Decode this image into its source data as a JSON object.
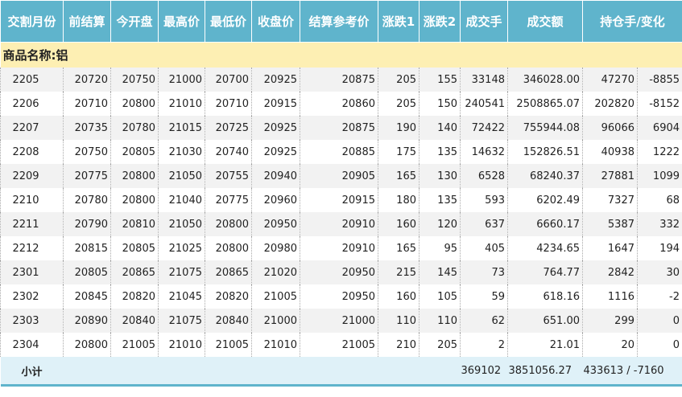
{
  "headers": [
    "交割月份",
    "前结算",
    "今开盘",
    "最高价",
    "最低价",
    "收盘价",
    "结算参考价",
    "涨跌1",
    "涨跌2",
    "成交手",
    "成交额",
    "持仓手/变化"
  ],
  "group_label": "商品名称:铝",
  "rows": [
    [
      "2205",
      "20720",
      "20750",
      "21000",
      "20700",
      "20925",
      "20875",
      "205",
      "155",
      "33148",
      "346028.00",
      "47270",
      "-8855"
    ],
    [
      "2206",
      "20710",
      "20800",
      "21010",
      "20710",
      "20915",
      "20860",
      "205",
      "150",
      "240541",
      "2508865.07",
      "202820",
      "-8152"
    ],
    [
      "2207",
      "20735",
      "20780",
      "21015",
      "20725",
      "20925",
      "20875",
      "190",
      "140",
      "72422",
      "755944.08",
      "96066",
      "6904"
    ],
    [
      "2208",
      "20750",
      "20805",
      "21030",
      "20740",
      "20925",
      "20885",
      "175",
      "135",
      "14632",
      "152826.51",
      "40938",
      "1222"
    ],
    [
      "2209",
      "20775",
      "20800",
      "21050",
      "20755",
      "20940",
      "20905",
      "165",
      "130",
      "6528",
      "68240.37",
      "27881",
      "1099"
    ],
    [
      "2210",
      "20780",
      "20800",
      "21040",
      "20775",
      "20960",
      "20915",
      "180",
      "135",
      "593",
      "6202.49",
      "7327",
      "68"
    ],
    [
      "2211",
      "20790",
      "20810",
      "21050",
      "20800",
      "20950",
      "20910",
      "160",
      "120",
      "637",
      "6660.17",
      "5387",
      "332"
    ],
    [
      "2212",
      "20815",
      "20805",
      "21025",
      "20800",
      "20980",
      "20910",
      "165",
      "95",
      "405",
      "4234.65",
      "1647",
      "194"
    ],
    [
      "2301",
      "20805",
      "20865",
      "21075",
      "20865",
      "21020",
      "20950",
      "215",
      "145",
      "73",
      "764.77",
      "2842",
      "30"
    ],
    [
      "2302",
      "20845",
      "20820",
      "21045",
      "20820",
      "21005",
      "20950",
      "160",
      "105",
      "59",
      "618.16",
      "1116",
      "-2"
    ],
    [
      "2303",
      "20890",
      "20840",
      "21075",
      "20840",
      "21000",
      "21000",
      "110",
      "110",
      "62",
      "651.00",
      "299",
      "0"
    ],
    [
      "2304",
      "20800",
      "21005",
      "21010",
      "21005",
      "21010",
      "21005",
      "210",
      "205",
      "2",
      "21.01",
      "20",
      "0"
    ]
  ],
  "subtotal": {
    "label": "小计",
    "volume": "369102",
    "turnover": "3851056.27",
    "open_interest": "433613 / -7160"
  }
}
